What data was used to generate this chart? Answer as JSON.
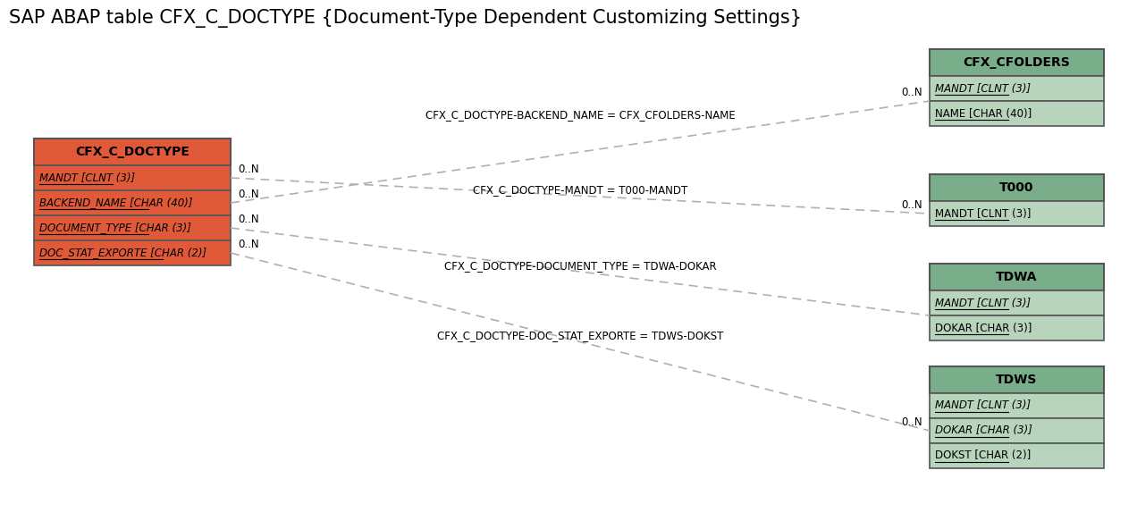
{
  "title": "SAP ABAP table CFX_C_DOCTYPE {Document-Type Dependent Customizing Settings}",
  "title_fontsize": 15,
  "background_color": "#ffffff",
  "main_table": {
    "name": "CFX_C_DOCTYPE",
    "header_color": "#e05a3a",
    "row_color": "#e05a3a",
    "border_color": "#555555",
    "fields": [
      {
        "label": "MANDT [CLNT (3)]",
        "italic": true,
        "underline": true
      },
      {
        "label": "BACKEND_NAME [CHAR (40)]",
        "italic": true,
        "underline": true
      },
      {
        "label": "DOCUMENT_TYPE [CHAR (3)]",
        "italic": true,
        "underline": true
      },
      {
        "label": "DOC_STAT_EXPORTE [CHAR (2)]",
        "italic": true,
        "underline": true
      }
    ]
  },
  "related_tables": [
    {
      "name": "CFX_CFOLDERS",
      "header_color": "#7aad8a",
      "row_color": "#b8d4bc",
      "border_color": "#555555",
      "fields": [
        {
          "label": "MANDT [CLNT (3)]",
          "italic": true,
          "underline": true
        },
        {
          "label": "NAME [CHAR (40)]",
          "italic": false,
          "underline": true
        }
      ]
    },
    {
      "name": "T000",
      "header_color": "#7aad8a",
      "row_color": "#b8d4bc",
      "border_color": "#555555",
      "fields": [
        {
          "label": "MANDT [CLNT (3)]",
          "italic": false,
          "underline": true
        }
      ]
    },
    {
      "name": "TDWA",
      "header_color": "#7aad8a",
      "row_color": "#b8d4bc",
      "border_color": "#555555",
      "fields": [
        {
          "label": "MANDT [CLNT (3)]",
          "italic": true,
          "underline": true
        },
        {
          "label": "DOKAR [CHAR (3)]",
          "italic": false,
          "underline": true
        }
      ]
    },
    {
      "name": "TDWS",
      "header_color": "#7aad8a",
      "row_color": "#b8d4bc",
      "border_color": "#555555",
      "fields": [
        {
          "label": "MANDT [CLNT (3)]",
          "italic": true,
          "underline": true
        },
        {
          "label": "DOKAR [CHAR (3)]",
          "italic": true,
          "underline": true
        },
        {
          "label": "DOKST [CHAR (2)]",
          "italic": false,
          "underline": true
        }
      ]
    }
  ],
  "connections": [
    {
      "label": "CFX_C_DOCTYPE-BACKEND_NAME = CFX_CFOLDERS-NAME",
      "left_label": "0..N",
      "right_label": "0..N"
    },
    {
      "label": "CFX_C_DOCTYPE-MANDT = T000-MANDT",
      "left_label": "0..N",
      "right_label": "0..N"
    },
    {
      "label": "CFX_C_DOCTYPE-DOCUMENT_TYPE = TDWA-DOKAR",
      "left_label": "0..N",
      "right_label": ""
    },
    {
      "label": "CFX_C_DOCTYPE-DOC_STAT_EXPORTE = TDWS-DOKST",
      "left_label": "0..N",
      "right_label": "0..N"
    }
  ]
}
